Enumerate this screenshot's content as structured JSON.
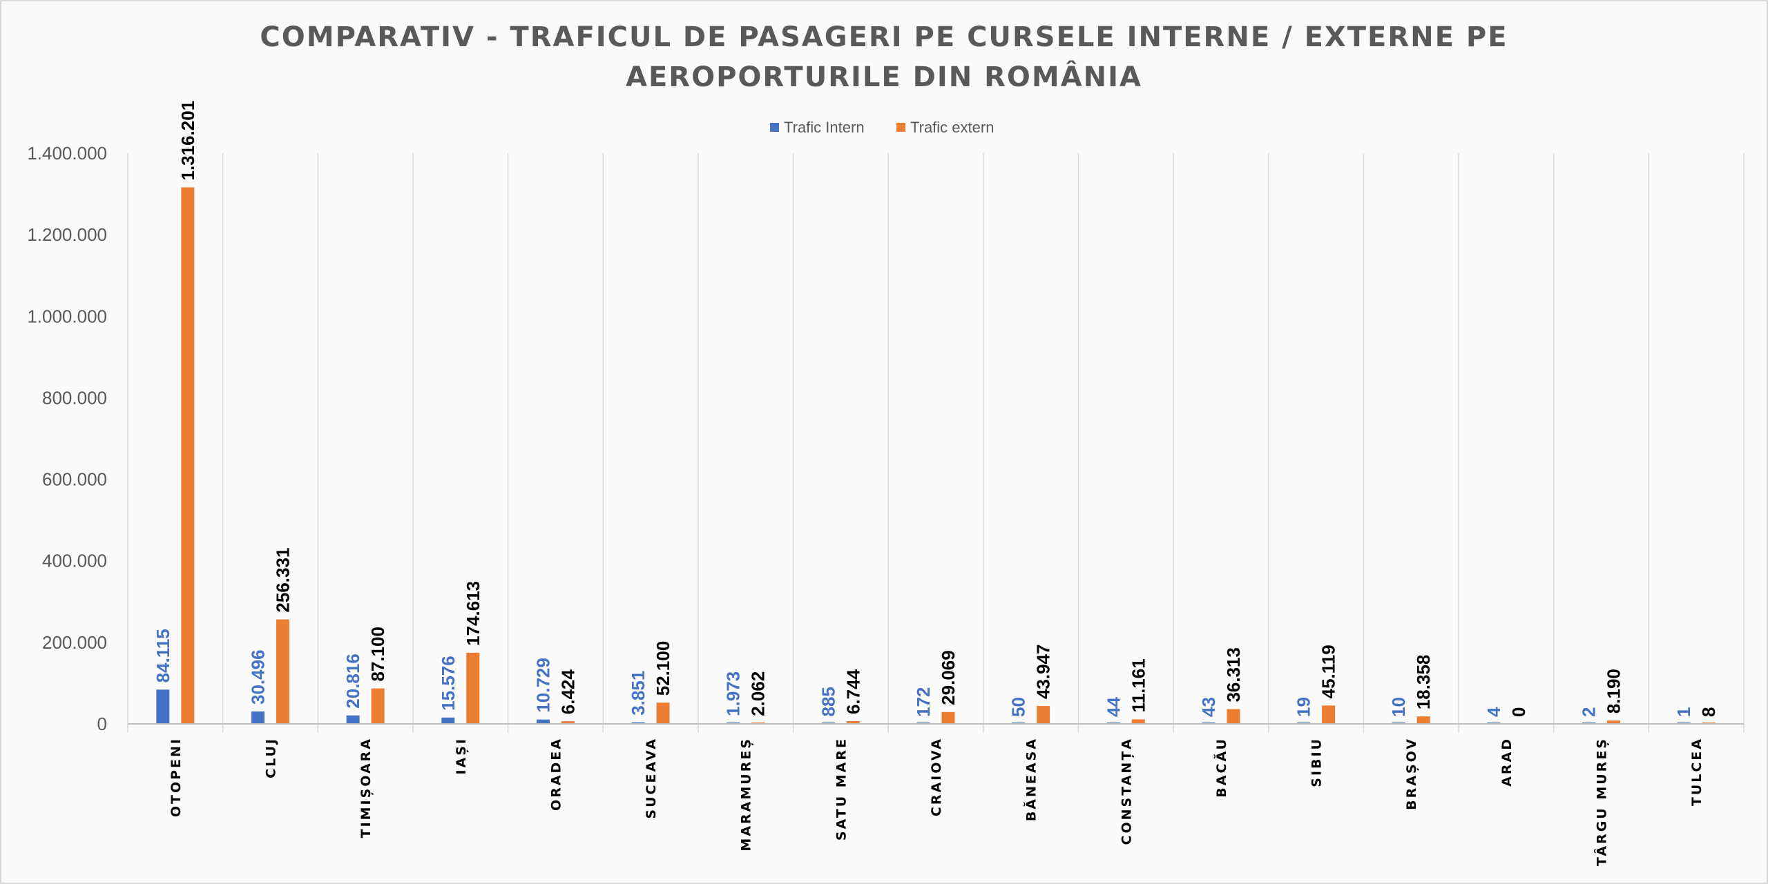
{
  "chart_data": {
    "type": "bar",
    "title": "COMPARATIV - TRAFICUL DE PASAGERI PE CURSELE INTERNE / EXTERNE PE AEROPORTURILE DIN ROMÂNIA",
    "title_lines": [
      "COMPARATIV - TRAFICUL DE PASAGERI PE CURSELE INTERNE / EXTERNE PE",
      "AEROPORTURILE DIN ROMÂNIA"
    ],
    "xlabel": "",
    "ylabel": "",
    "ylim": [
      0,
      1400000
    ],
    "yticks": [
      0,
      200000,
      400000,
      600000,
      800000,
      1000000,
      1200000,
      1400000
    ],
    "ytick_labels": [
      "0",
      "200.000",
      "400.000",
      "600.000",
      "800.000",
      "1.000.000",
      "1.200.000",
      "1.400.000"
    ],
    "grid": "vertical category dividers",
    "legend_position": "top-center",
    "categories": [
      "OTOPENI",
      "CLUJ",
      "TIMIȘOARA",
      "IAȘI",
      "ORADEA",
      "SUCEAVA",
      "MARAMUREȘ",
      "SATU MARE",
      "CRAIOVA",
      "BĂNEASA",
      "CONSTANȚA",
      "BACĂU",
      "SIBIU",
      "BRAȘOV",
      "ARAD",
      "TÂRGU MUREȘ",
      "TULCEA"
    ],
    "series": [
      {
        "name": "Trafic Intern",
        "color": "#4472c4",
        "values": [
          84115,
          30496,
          20816,
          15576,
          10729,
          3851,
          1973,
          885,
          172,
          50,
          44,
          43,
          19,
          10,
          4,
          2,
          1
        ],
        "labels": [
          "84.115",
          "30.496",
          "20.816",
          "15.576",
          "10.729",
          "3.851",
          "1.973",
          "885",
          "172",
          "50",
          "44",
          "43",
          "19",
          "10",
          "4",
          "2",
          "1"
        ]
      },
      {
        "name": "Trafic extern",
        "color": "#ed7d31",
        "values": [
          1316201,
          256331,
          87100,
          174613,
          6424,
          52100,
          2062,
          6744,
          29069,
          43947,
          11161,
          36313,
          45119,
          18358,
          0,
          8190,
          8
        ],
        "labels": [
          "1.316.201",
          "256.331",
          "87.100",
          "174.613",
          "6.424",
          "52.100",
          "2.062",
          "6.744",
          "29.069",
          "43.947",
          "11.161",
          "36.313",
          "45.119",
          "18.358",
          "0",
          "8.190",
          "8"
        ]
      }
    ]
  }
}
